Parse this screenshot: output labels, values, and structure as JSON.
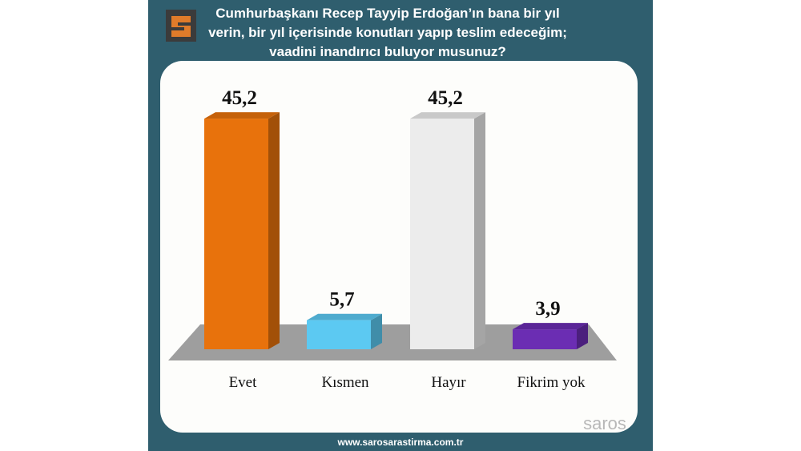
{
  "chart_data": {
    "type": "bar3d",
    "title": [
      "Cumhurbaşkanı Recep Tayyip Erdoğan’ın bana bir yıl",
      "verin, bir yıl içerisinde konutları yapıp teslim edeceğim;",
      "vaadini inandırıcı buluyor musunuz?"
    ],
    "categories": [
      "Evet",
      "Kısmen",
      "Hayır",
      "Fikrim yok"
    ],
    "values": [
      45.2,
      5.7,
      45.2,
      3.9
    ],
    "value_labels": [
      "45,2",
      "5,7",
      "45,2",
      "3,9"
    ],
    "colors": [
      "#e8720c",
      "#5cc9f2",
      "#ececec",
      "#6b2db3"
    ],
    "source": "www.sarosarastirma.com.tr",
    "brand": "saros"
  }
}
